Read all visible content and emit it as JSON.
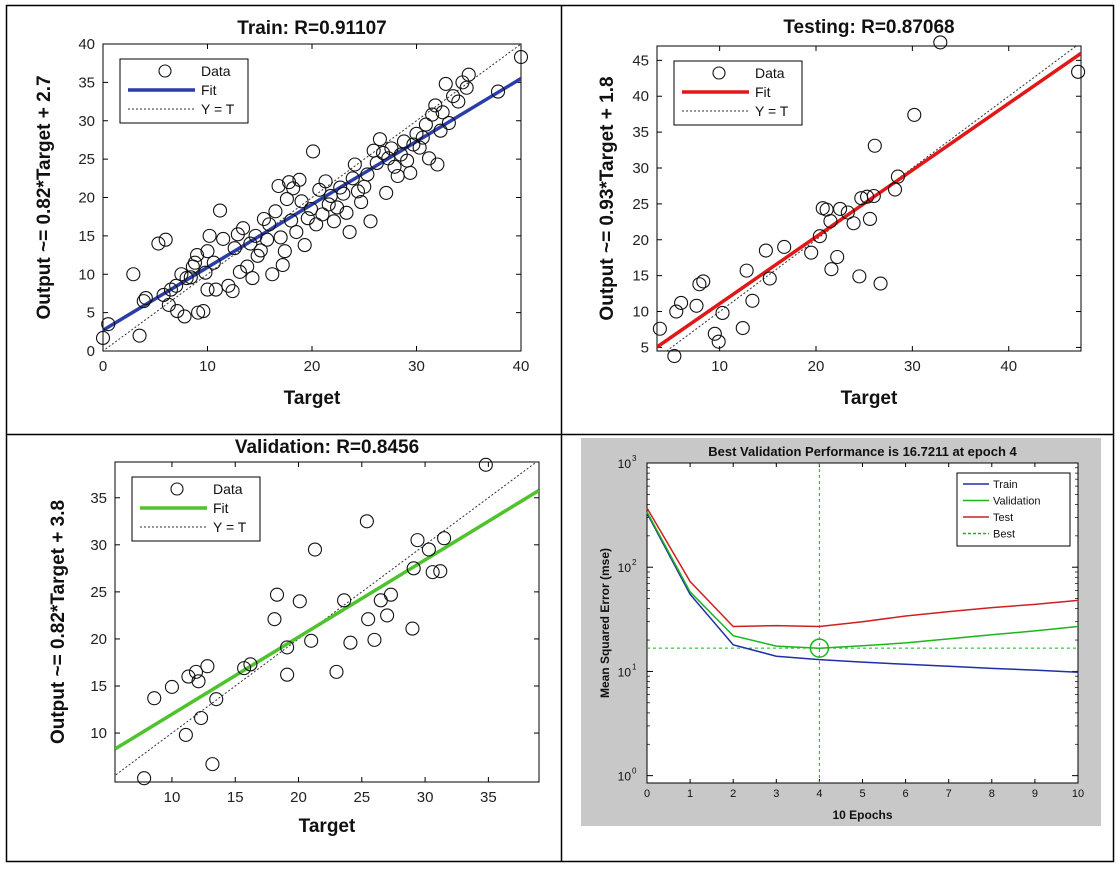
{
  "chart_data": [
    {
      "type": "scatter",
      "title": "Train: R=0.91107",
      "xlabel": "Target",
      "ylabel": "Output ~= 0.82*Target + 2.7",
      "xlim": [
        0,
        40
      ],
      "ylim": [
        0,
        40
      ],
      "xticks": [
        0,
        10,
        20,
        30,
        40
      ],
      "yticks": [
        0,
        5,
        10,
        15,
        20,
        25,
        30,
        35,
        40
      ],
      "grid": false,
      "legend": {
        "position": "top-left",
        "entries": [
          {
            "label": "Data",
            "kind": "marker"
          },
          {
            "label": "Fit",
            "kind": "fit"
          },
          {
            "label": "Y = T",
            "kind": "identity"
          }
        ]
      },
      "fit": {
        "slope": 0.82,
        "intercept": 2.7,
        "color": "#2b3da8"
      },
      "points": [
        [
          0,
          1.7
        ],
        [
          0.5,
          3.5
        ],
        [
          2.9,
          10
        ],
        [
          3.5,
          2
        ],
        [
          3.9,
          6.5
        ],
        [
          4.1,
          6.9
        ],
        [
          5.3,
          14
        ],
        [
          5.8,
          7.3
        ],
        [
          6,
          14.5
        ],
        [
          6.3,
          6
        ],
        [
          6.5,
          8
        ],
        [
          7,
          8.5
        ],
        [
          7.1,
          5.2
        ],
        [
          7.5,
          10
        ],
        [
          7.8,
          4.5
        ],
        [
          8,
          9.5
        ],
        [
          8.4,
          9.6
        ],
        [
          8.6,
          11
        ],
        [
          8.8,
          11.5
        ],
        [
          9,
          12.5
        ],
        [
          9.1,
          5
        ],
        [
          9.6,
          5.2
        ],
        [
          9.8,
          10.2
        ],
        [
          10,
          13
        ],
        [
          10,
          8
        ],
        [
          10.2,
          15
        ],
        [
          10.6,
          11.5
        ],
        [
          10.8,
          8
        ],
        [
          11.2,
          18.3
        ],
        [
          11.5,
          14.6
        ],
        [
          12,
          8.5
        ],
        [
          12.4,
          7.8
        ],
        [
          12.6,
          13.4
        ],
        [
          12.9,
          15.2
        ],
        [
          13.1,
          10.3
        ],
        [
          13.4,
          16
        ],
        [
          13.8,
          11
        ],
        [
          14.1,
          14
        ],
        [
          14.3,
          9.5
        ],
        [
          14.6,
          15
        ],
        [
          14.8,
          12.4
        ],
        [
          15.1,
          13.1
        ],
        [
          15.4,
          17.2
        ],
        [
          15.7,
          14.5
        ],
        [
          15.9,
          16.5
        ],
        [
          16.2,
          10
        ],
        [
          16.5,
          18.2
        ],
        [
          16.8,
          21.5
        ],
        [
          17,
          14.8
        ],
        [
          17.2,
          11.2
        ],
        [
          17.4,
          13
        ],
        [
          17.6,
          19.8
        ],
        [
          17.8,
          22
        ],
        [
          18,
          17
        ],
        [
          18.2,
          21.2
        ],
        [
          18.5,
          15.5
        ],
        [
          18.8,
          22.3
        ],
        [
          19,
          19.5
        ],
        [
          19.3,
          13.8
        ],
        [
          19.6,
          17.3
        ],
        [
          19.9,
          18.5
        ],
        [
          20.1,
          26
        ],
        [
          20.4,
          16.5
        ],
        [
          20.7,
          21
        ],
        [
          21,
          17.8
        ],
        [
          21.3,
          22.1
        ],
        [
          21.6,
          19.1
        ],
        [
          21.8,
          20.2
        ],
        [
          22.1,
          16.9
        ],
        [
          22.4,
          18.7
        ],
        [
          22.7,
          21.3
        ],
        [
          23,
          20.5
        ],
        [
          23.3,
          18
        ],
        [
          23.6,
          15.5
        ],
        [
          23.9,
          22.5
        ],
        [
          24.1,
          24.3
        ],
        [
          24.4,
          20.8
        ],
        [
          24.7,
          19.4
        ],
        [
          25,
          21.4
        ],
        [
          25.3,
          23
        ],
        [
          25.6,
          16.9
        ],
        [
          25.9,
          26.1
        ],
        [
          26.2,
          24.5
        ],
        [
          26.5,
          27.6
        ],
        [
          26.8,
          25.8
        ],
        [
          27.1,
          20.6
        ],
        [
          27.3,
          25.1
        ],
        [
          27.6,
          26.4
        ],
        [
          27.9,
          24
        ],
        [
          28.2,
          22.8
        ],
        [
          28.5,
          25.6
        ],
        [
          28.8,
          27.3
        ],
        [
          29.1,
          24.8
        ],
        [
          29.4,
          23.2
        ],
        [
          29.7,
          26.9
        ],
        [
          30,
          28.3
        ],
        [
          30.3,
          26.5
        ],
        [
          30.6,
          27.8
        ],
        [
          30.9,
          29.5
        ],
        [
          31.2,
          25.1
        ],
        [
          31.5,
          30.8
        ],
        [
          31.8,
          32
        ],
        [
          32,
          24.3
        ],
        [
          32.3,
          28.7
        ],
        [
          32.5,
          31.1
        ],
        [
          32.8,
          34.8
        ],
        [
          33.1,
          29.7
        ],
        [
          33.5,
          33.2
        ],
        [
          34,
          32.5
        ],
        [
          34.4,
          35
        ],
        [
          34.8,
          34.3
        ],
        [
          35,
          36
        ],
        [
          37.8,
          33.8
        ],
        [
          40,
          38.3
        ]
      ]
    },
    {
      "type": "scatter",
      "title": "Testing: R=0.87068",
      "xlabel": "Target",
      "ylabel": "Output ~= 0.93*Target + 1.8",
      "xlim": [
        3.5,
        47.5
      ],
      "ylim": [
        4.5,
        47
      ],
      "xticks": [
        10,
        20,
        30,
        40
      ],
      "yticks": [
        5,
        10,
        15,
        20,
        25,
        30,
        35,
        40,
        45
      ],
      "grid": false,
      "legend": {
        "position": "top-left",
        "entries": [
          {
            "label": "Data",
            "kind": "marker"
          },
          {
            "label": "Fit",
            "kind": "fit"
          },
          {
            "label": "Y = T",
            "kind": "identity"
          }
        ]
      },
      "fit": {
        "slope": 0.93,
        "intercept": 1.8,
        "color": "#e01818"
      },
      "points": [
        [
          3.8,
          7.6
        ],
        [
          5.3,
          3.8
        ],
        [
          5.5,
          10
        ],
        [
          6,
          11.2
        ],
        [
          7.6,
          10.8
        ],
        [
          7.9,
          13.8
        ],
        [
          8.3,
          14.2
        ],
        [
          9.5,
          6.9
        ],
        [
          9.9,
          5.8
        ],
        [
          10.3,
          9.8
        ],
        [
          12.4,
          7.7
        ],
        [
          12.8,
          15.7
        ],
        [
          13.4,
          11.5
        ],
        [
          14.8,
          18.5
        ],
        [
          15.2,
          14.6
        ],
        [
          16.7,
          19
        ],
        [
          19.5,
          18.2
        ],
        [
          20.4,
          20.5
        ],
        [
          20.7,
          24.4
        ],
        [
          21.1,
          24.2
        ],
        [
          21.5,
          22.6
        ],
        [
          21.6,
          15.9
        ],
        [
          22.2,
          17.6
        ],
        [
          22.5,
          24.3
        ],
        [
          23.3,
          23.8
        ],
        [
          23.9,
          22.3
        ],
        [
          24.5,
          14.9
        ],
        [
          24.7,
          25.8
        ],
        [
          25.3,
          26
        ],
        [
          25.6,
          22.9
        ],
        [
          26,
          26.1
        ],
        [
          26.1,
          33.1
        ],
        [
          26.7,
          13.9
        ],
        [
          28.2,
          27
        ],
        [
          28.5,
          28.8
        ],
        [
          30.2,
          37.4
        ],
        [
          32.9,
          47.5
        ],
        [
          47.2,
          43.4
        ]
      ]
    },
    {
      "type": "scatter",
      "title": "Validation: R=0.8456",
      "xlabel": "Target",
      "ylabel": "Output ~= 0.82*Target + 3.8",
      "xlim": [
        5.5,
        39
      ],
      "ylim": [
        4.8,
        38.8
      ],
      "xticks": [
        10,
        15,
        20,
        25,
        30,
        35
      ],
      "yticks": [
        10,
        15,
        20,
        25,
        30,
        35
      ],
      "grid": false,
      "legend": {
        "position": "top-left",
        "entries": [
          {
            "label": "Data",
            "kind": "marker"
          },
          {
            "label": "Fit",
            "kind": "fit"
          },
          {
            "label": "Y = T",
            "kind": "identity"
          }
        ]
      },
      "fit": {
        "slope": 0.82,
        "intercept": 3.8,
        "color": "#4fc32d"
      },
      "points": [
        [
          7.8,
          5.2
        ],
        [
          8.6,
          13.7
        ],
        [
          10,
          14.9
        ],
        [
          11.1,
          9.8
        ],
        [
          11.3,
          16
        ],
        [
          11.9,
          16.5
        ],
        [
          12.1,
          15.5
        ],
        [
          12.3,
          11.6
        ],
        [
          12.8,
          17.1
        ],
        [
          13.2,
          6.7
        ],
        [
          13.5,
          13.6
        ],
        [
          15.7,
          16.9
        ],
        [
          16.2,
          17.3
        ],
        [
          18.1,
          22.1
        ],
        [
          18.3,
          24.7
        ],
        [
          19.1,
          16.2
        ],
        [
          19.1,
          19.1
        ],
        [
          20.1,
          24
        ],
        [
          21,
          19.8
        ],
        [
          21.3,
          29.5
        ],
        [
          23,
          16.5
        ],
        [
          23.6,
          24.1
        ],
        [
          24.1,
          19.6
        ],
        [
          25.4,
          32.5
        ],
        [
          25.5,
          22.1
        ],
        [
          26,
          19.9
        ],
        [
          26.5,
          24.1
        ],
        [
          27,
          22.5
        ],
        [
          27.3,
          24.7
        ],
        [
          29,
          21.1
        ],
        [
          29.1,
          27.5
        ],
        [
          29.4,
          30.5
        ],
        [
          30.3,
          29.5
        ],
        [
          30.6,
          27.1
        ],
        [
          31.2,
          27.2
        ],
        [
          31.5,
          30.7
        ],
        [
          34.8,
          38.5
        ]
      ]
    },
    {
      "type": "line",
      "title": "Best Validation Performance is 16.7211 at epoch 4",
      "xlabel": "10 Epochs",
      "ylabel": "Mean Squared Error  (mse)",
      "yscale": "log",
      "xlim": [
        0,
        10
      ],
      "ylim": [
        0.85,
        1000
      ],
      "xticks": [
        0,
        1,
        2,
        3,
        4,
        5,
        6,
        7,
        8,
        9,
        10
      ],
      "yticks": [
        {
          "value": 1,
          "base": "10",
          "exp": "0"
        },
        {
          "value": 10,
          "base": "10",
          "exp": "1"
        },
        {
          "value": 100,
          "base": "10",
          "exp": "2"
        },
        {
          "value": 1000,
          "base": "10",
          "exp": "3"
        }
      ],
      "legend": {
        "position": "top-right"
      },
      "x": [
        0,
        1,
        2,
        3,
        4,
        5,
        6,
        7,
        8,
        9,
        10
      ],
      "series": [
        {
          "name": "Train",
          "color": "#1f2fa6",
          "values": [
            330,
            55,
            18,
            14,
            13,
            12.3,
            11.7,
            11.2,
            10.7,
            10.3,
            9.8
          ]
        },
        {
          "name": "Validation",
          "color": "#1db51d",
          "values": [
            340,
            58,
            22,
            17.5,
            16.72,
            17.6,
            18.8,
            20.5,
            22.5,
            24.5,
            27
          ]
        },
        {
          "name": "Test",
          "color": "#d01f1f",
          "values": [
            370,
            73,
            27,
            27.5,
            27,
            30,
            34,
            37.5,
            41,
            44,
            48
          ]
        }
      ],
      "best": {
        "name": "Best",
        "epoch": 4,
        "value": 16.7211,
        "color": "#1db51d"
      }
    }
  ]
}
